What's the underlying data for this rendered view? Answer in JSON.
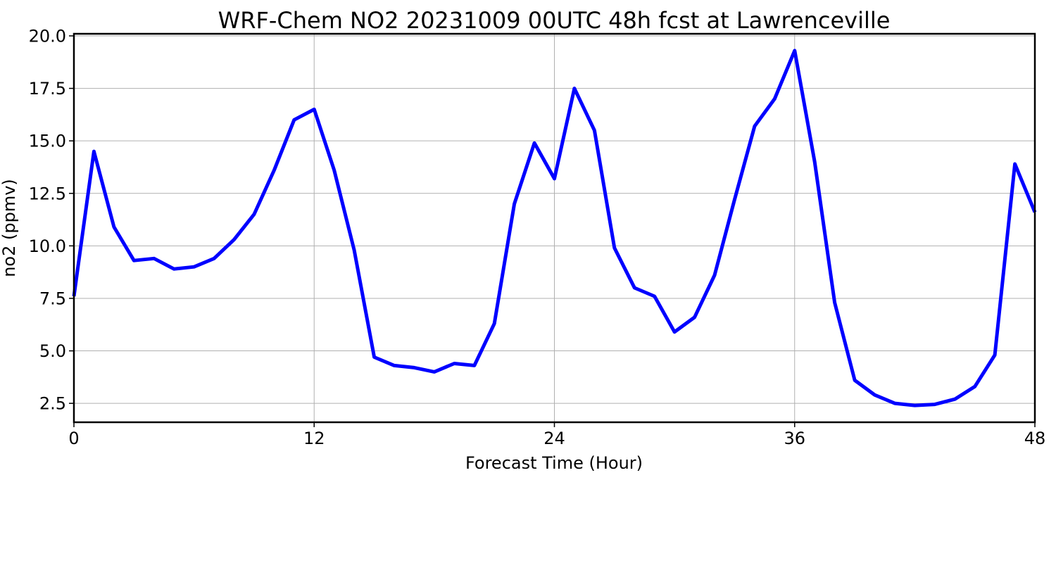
{
  "chart_data": {
    "type": "line",
    "title": "WRF-Chem NO2  20231009 00UTC 48h fcst at Lawrenceville",
    "xlabel": "Forecast Time (Hour)",
    "ylabel": "no2  (ppmv)",
    "xlim": [
      0,
      48
    ],
    "ylim": [
      1.6,
      20.1
    ],
    "xticks": [
      0,
      12,
      24,
      36,
      48
    ],
    "xtick_labels": [
      "0",
      "12",
      "24",
      "36",
      "48"
    ],
    "yticks": [
      2.5,
      5.0,
      7.5,
      10.0,
      12.5,
      15.0,
      17.5,
      20.0
    ],
    "ytick_labels": [
      "2.5",
      "5.0",
      "7.5",
      "10.0",
      "12.5",
      "15.0",
      "17.5",
      "20.0"
    ],
    "grid": true,
    "line_color": "#0000ff",
    "series": [
      {
        "x": [
          0,
          1,
          2,
          3,
          4,
          5,
          6,
          7,
          8,
          9,
          10,
          11,
          12,
          13,
          14,
          15,
          16,
          17,
          18,
          19,
          20,
          21,
          22,
          23,
          24,
          25,
          26,
          27,
          28,
          29,
          30,
          31,
          32,
          33,
          34,
          35,
          36,
          37,
          38,
          39,
          40,
          41,
          42,
          43,
          44,
          45,
          46,
          47,
          48
        ],
        "values": [
          7.6,
          14.5,
          10.9,
          9.3,
          9.4,
          8.9,
          9.0,
          9.4,
          10.3,
          11.5,
          13.6,
          16.0,
          16.5,
          13.6,
          9.8,
          4.7,
          4.3,
          4.2,
          4.0,
          4.4,
          4.3,
          6.3,
          12.0,
          14.9,
          13.2,
          17.5,
          15.5,
          9.9,
          8.0,
          7.6,
          5.9,
          6.6,
          8.6,
          12.2,
          15.7,
          17.0,
          19.3,
          14.0,
          7.3,
          3.6,
          2.9,
          2.5,
          2.4,
          2.45,
          2.7,
          3.3,
          4.8,
          13.9,
          11.6
        ]
      }
    ]
  }
}
